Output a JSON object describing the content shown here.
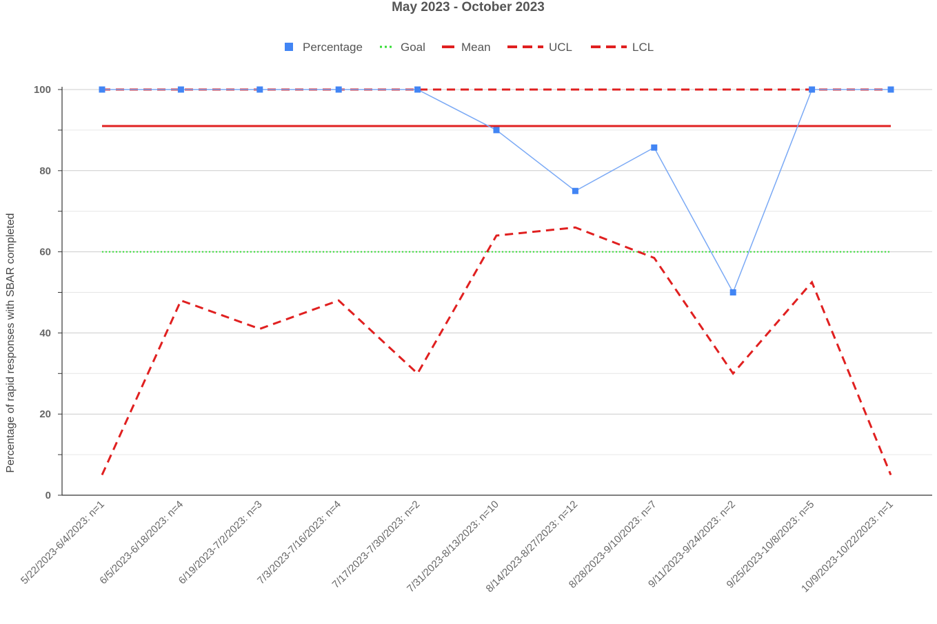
{
  "chart_data": {
    "type": "line",
    "title": "May 2023 - October 2023",
    "xlabel": "",
    "ylabel": "Percentage of rapid responses with SBAR completed",
    "ylim": [
      0,
      100
    ],
    "y_ticks": [
      "0",
      "20",
      "40",
      "60",
      "80",
      "100"
    ],
    "grid": true,
    "legend_position": "top",
    "categories": [
      "5/22/2023-6/4/2023: n=1",
      "6/5/2023-6/18/2023: n=4",
      "6/19/2023-7/2/2023: n=3",
      "7/3/2023-7/16/2023: n=4",
      "7/17/2023-7/30/2023: n=2",
      "7/31/2023-8/13/2023: n=10",
      "8/14/2023-8/27/2023: n=12",
      "8/28/2023-9/10/2023: n=7",
      "9/11/2023-9/24/2023: n=2",
      "9/25/2023-10/8/2023: n=5",
      "10/9/2023-10/22/2023: n=1"
    ],
    "series": [
      {
        "name": "Percentage",
        "color": "#4285f4",
        "style": "line-markers",
        "values": [
          100,
          100,
          100,
          100,
          100,
          90,
          75,
          85.7,
          50,
          100,
          100
        ]
      },
      {
        "name": "Goal",
        "color": "#33dd33",
        "style": "dotted",
        "values": [
          60,
          60,
          60,
          60,
          60,
          60,
          60,
          60,
          60,
          60,
          60
        ]
      },
      {
        "name": "Mean",
        "color": "#e02020",
        "style": "solid",
        "values": [
          91,
          91,
          91,
          91,
          91,
          91,
          91,
          91,
          91,
          91,
          91
        ]
      },
      {
        "name": "UCL",
        "color": "#e02020",
        "style": "dashed",
        "values": [
          100,
          100,
          100,
          100,
          100,
          100,
          100,
          100,
          100,
          100,
          100
        ]
      },
      {
        "name": "LCL",
        "color": "#e02020",
        "style": "dashed",
        "values": [
          5,
          48,
          41,
          48,
          30,
          64,
          66,
          58.5,
          30,
          52.5,
          5
        ]
      }
    ]
  }
}
